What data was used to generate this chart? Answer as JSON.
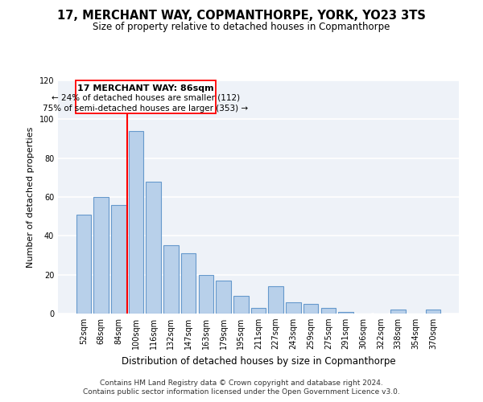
{
  "title": "17, MERCHANT WAY, COPMANTHORPE, YORK, YO23 3TS",
  "subtitle": "Size of property relative to detached houses in Copmanthorpe",
  "xlabel": "Distribution of detached houses by size in Copmanthorpe",
  "ylabel": "Number of detached properties",
  "bar_labels": [
    "52sqm",
    "68sqm",
    "84sqm",
    "100sqm",
    "116sqm",
    "132sqm",
    "147sqm",
    "163sqm",
    "179sqm",
    "195sqm",
    "211sqm",
    "227sqm",
    "243sqm",
    "259sqm",
    "275sqm",
    "291sqm",
    "306sqm",
    "322sqm",
    "338sqm",
    "354sqm",
    "370sqm"
  ],
  "bar_values": [
    51,
    60,
    56,
    94,
    68,
    35,
    31,
    20,
    17,
    9,
    3,
    14,
    6,
    5,
    3,
    1,
    0,
    0,
    2,
    0,
    2
  ],
  "bar_color": "#b8d0ea",
  "bar_edge_color": "#6699cc",
  "ylim": [
    0,
    120
  ],
  "yticks": [
    0,
    20,
    40,
    60,
    80,
    100,
    120
  ],
  "red_line_x": 2.5,
  "annotation_title": "17 MERCHANT WAY: 86sqm",
  "annotation_line1": "← 24% of detached houses are smaller (112)",
  "annotation_line2": "75% of semi-detached houses are larger (353) →",
  "footer1": "Contains HM Land Registry data © Crown copyright and database right 2024.",
  "footer2": "Contains public sector information licensed under the Open Government Licence v3.0.",
  "bg_color": "#eef2f8",
  "grid_color": "#ffffff",
  "title_fontsize": 10.5,
  "subtitle_fontsize": 8.5,
  "tick_fontsize": 7,
  "ylabel_fontsize": 8,
  "xlabel_fontsize": 8.5,
  "footer_fontsize": 6.5
}
